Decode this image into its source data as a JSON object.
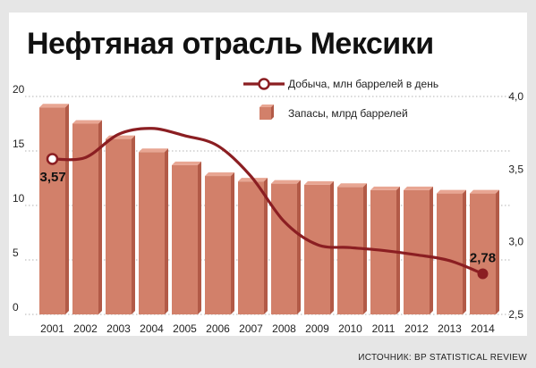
{
  "title": "Нефтяная отрасль Мексики",
  "source": "ИСТОЧНИК: BP STATISTICAL REVIEW",
  "colors": {
    "background": "#e6e6e6",
    "panel": "#ffffff",
    "bar_face": "#d2806a",
    "bar_top": "#e8a693",
    "bar_side": "#b25a47",
    "line": "#8b1e22",
    "grid": "#9a9a9a"
  },
  "chart_data": {
    "type": "bar",
    "categories": [
      "2001",
      "2002",
      "2003",
      "2004",
      "2005",
      "2006",
      "2007",
      "2008",
      "2009",
      "2010",
      "2011",
      "2012",
      "2013",
      "2014"
    ],
    "series": [
      {
        "name": "Запасы, млрд баррелей",
        "type": "bar",
        "axis": "left",
        "values": [
          19.0,
          17.5,
          16.1,
          14.9,
          13.7,
          12.7,
          12.2,
          12.0,
          11.9,
          11.7,
          11.4,
          11.4,
          11.1,
          11.1
        ]
      },
      {
        "name": "Добыча, млн баррелей в день",
        "type": "line",
        "axis": "right",
        "values": [
          3.57,
          3.58,
          3.74,
          3.78,
          3.73,
          3.66,
          3.45,
          3.14,
          2.98,
          2.96,
          2.94,
          2.91,
          2.87,
          2.78
        ]
      }
    ],
    "point_labels": [
      {
        "category": "2001",
        "text": "3,57"
      },
      {
        "category": "2014",
        "text": "2,78"
      }
    ],
    "y_left": {
      "min": 0,
      "max": 20,
      "ticks": [
        "0",
        "5",
        "10",
        "15",
        "20"
      ]
    },
    "y_right": {
      "min": 2.5,
      "max": 4.0,
      "ticks": [
        "2,5",
        "3,0",
        "3,5",
        "4,0"
      ]
    },
    "grid": true,
    "legend_position": "top-right"
  }
}
